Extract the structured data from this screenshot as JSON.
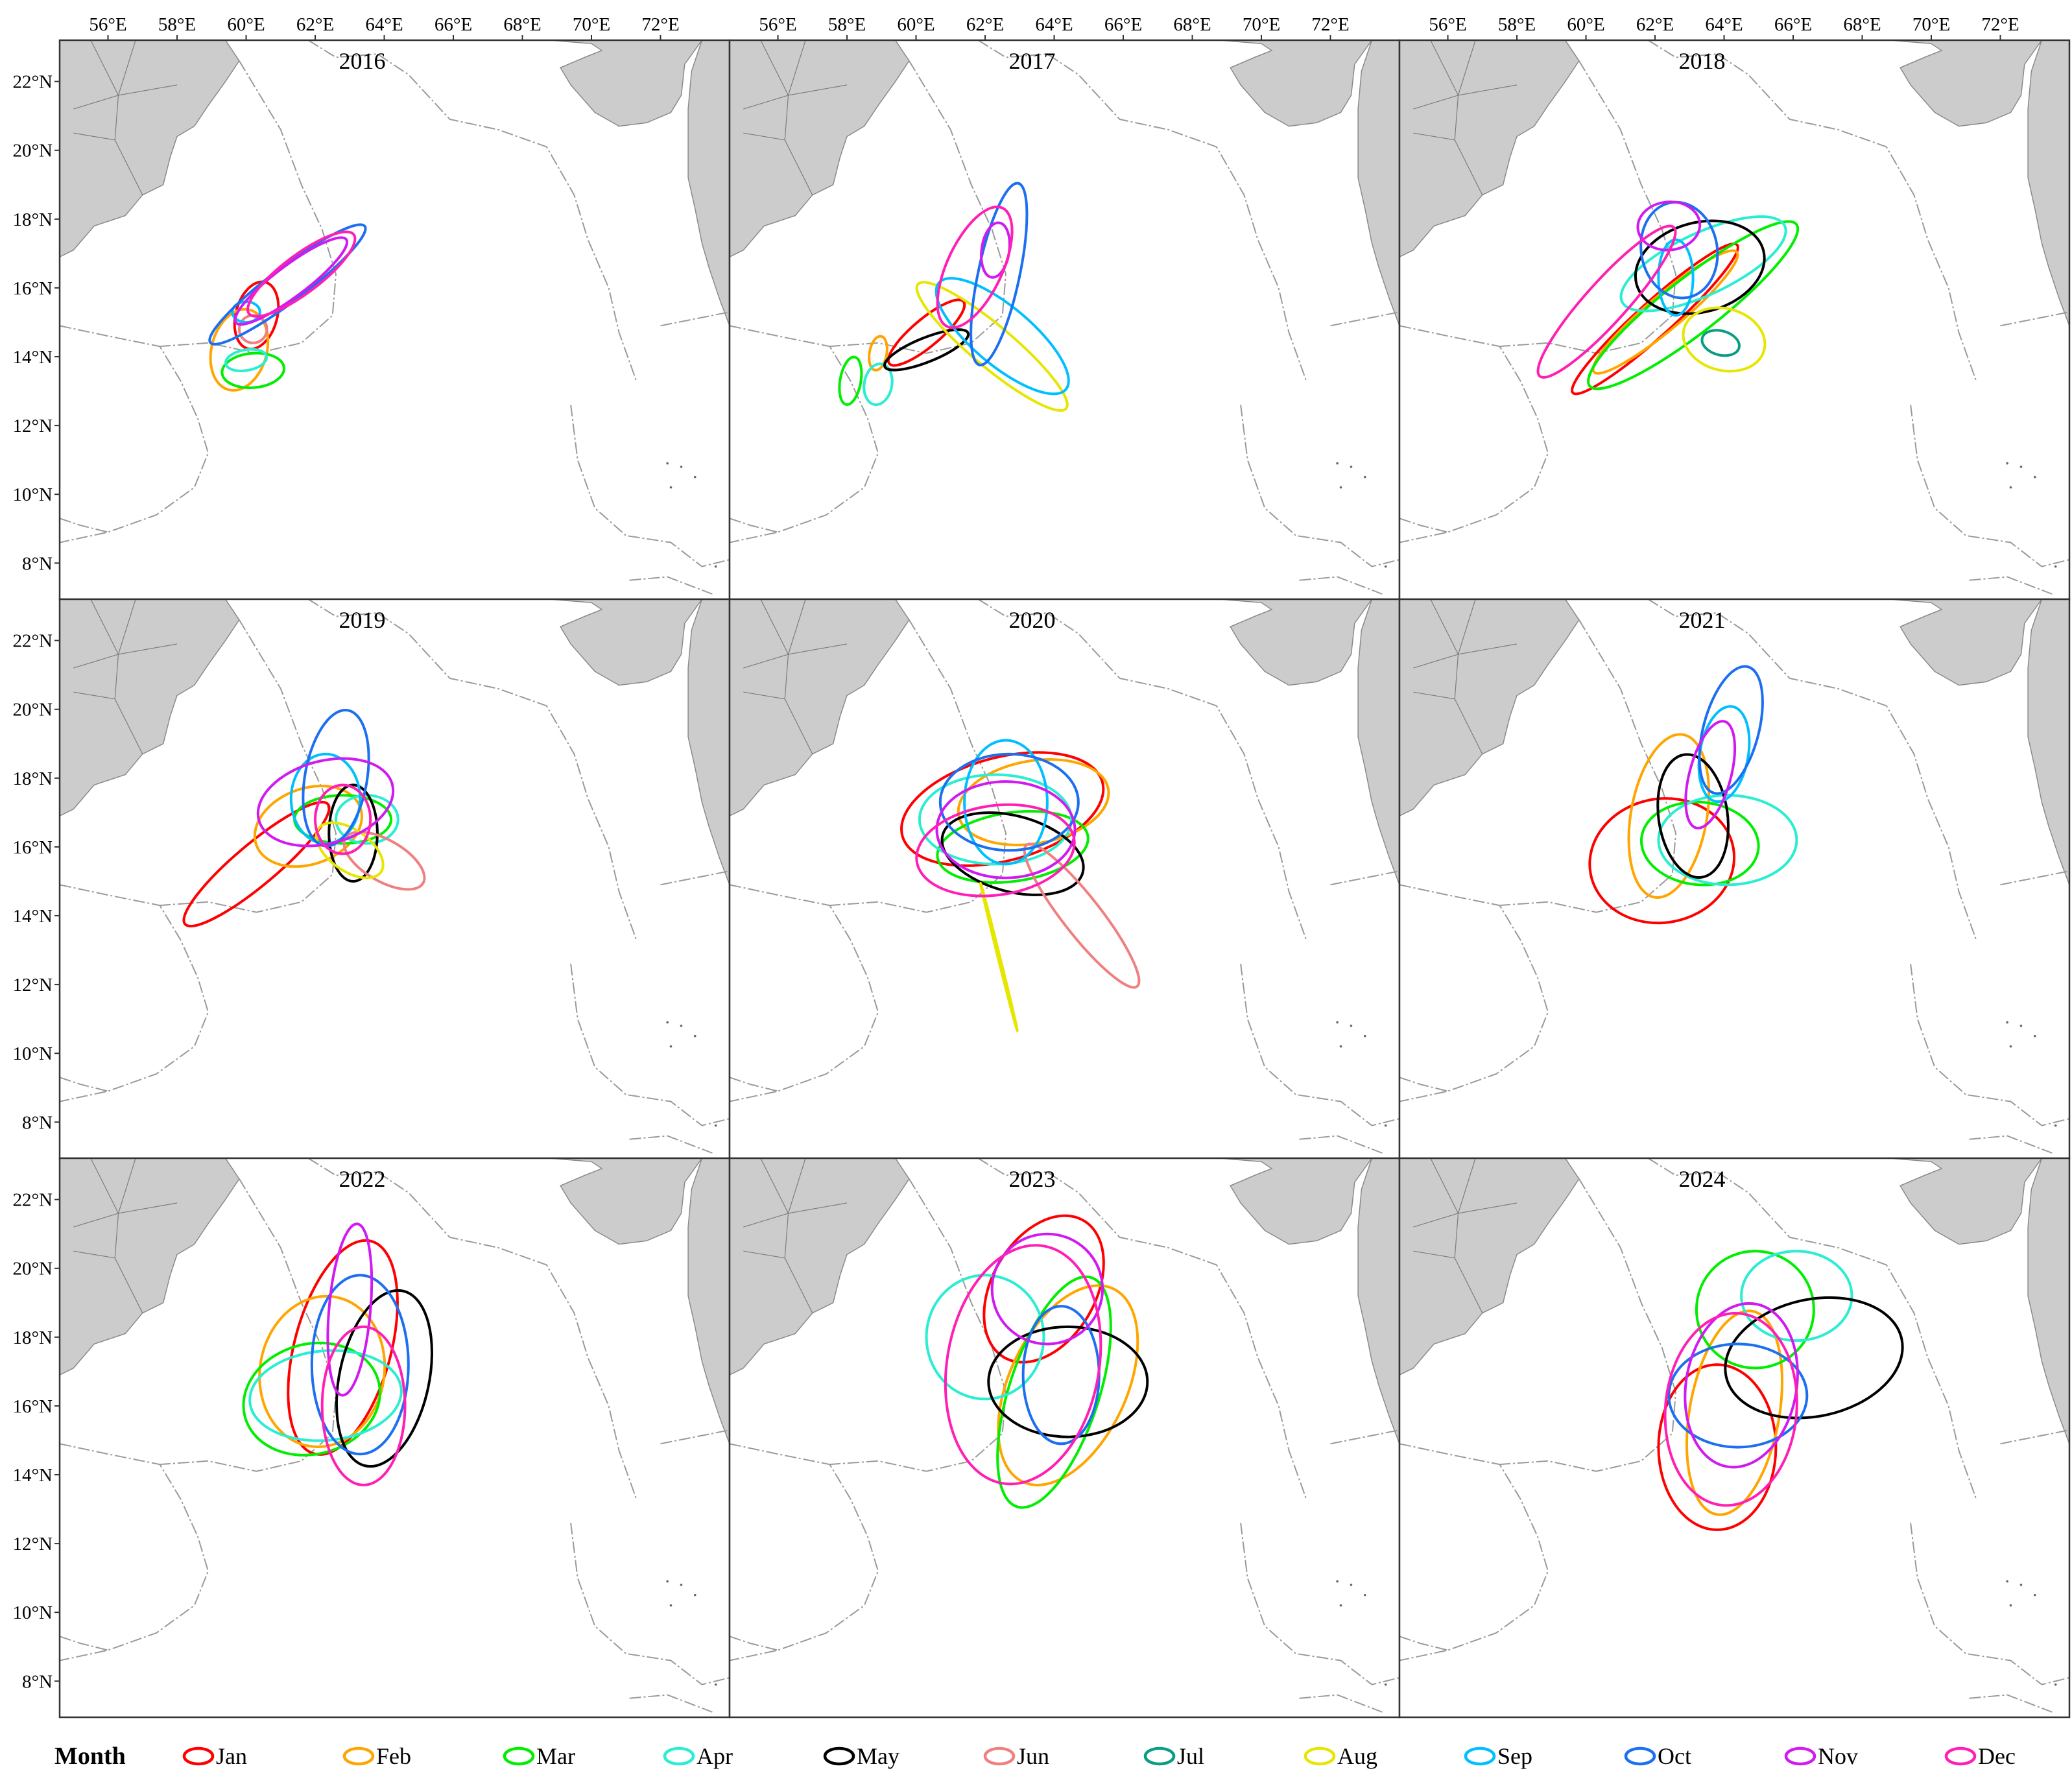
{
  "lon_ticks": [
    "56°E",
    "58°E",
    "60°E",
    "62°E",
    "64°E",
    "66°E",
    "68°E",
    "70°E",
    "72°E"
  ],
  "lat_ticks": [
    "22°N",
    "20°N",
    "18°N",
    "16°N",
    "14°N",
    "12°N",
    "10°N",
    "8°N"
  ],
  "legend": {
    "title": "Month",
    "months": [
      {
        "key": "Jan",
        "label": "Jan",
        "color": "#ff0000"
      },
      {
        "key": "Feb",
        "label": "Feb",
        "color": "#ffa500"
      },
      {
        "key": "Mar",
        "label": "Mar",
        "color": "#00ee00"
      },
      {
        "key": "Apr",
        "label": "Apr",
        "color": "#2aedd2"
      },
      {
        "key": "May",
        "label": "May",
        "color": "#000000"
      },
      {
        "key": "Jun",
        "label": "Jun",
        "color": "#f08080"
      },
      {
        "key": "Jul",
        "label": "Jul",
        "color": "#0a9d82"
      },
      {
        "key": "Aug",
        "label": "Aug",
        "color": "#e6e600"
      },
      {
        "key": "Sep",
        "label": "Sep",
        "color": "#00bfff"
      },
      {
        "key": "Oct",
        "label": "Oct",
        "color": "#1c6ff0"
      },
      {
        "key": "Nov",
        "label": "Nov",
        "color": "#d01af0"
      },
      {
        "key": "Dec",
        "label": "Dec",
        "color": "#ff1fb4"
      }
    ]
  },
  "colors": {
    "land": "#cccccc",
    "land_border": "#8a8a8a",
    "boundary": "#9a9a9a",
    "frame": "#333333"
  },
  "panels": [
    {
      "year": "2016",
      "ellipses": [
        {
          "m": "Jan",
          "lon": 60.3,
          "lat": 15.2,
          "rx": 0.6,
          "ry": 1.0,
          "rot": 15
        },
        {
          "m": "Feb",
          "lon": 59.8,
          "lat": 14.2,
          "rx": 0.8,
          "ry": 1.2,
          "rot": 15
        },
        {
          "m": "Mar",
          "lon": 60.2,
          "lat": 13.6,
          "rx": 0.9,
          "ry": 0.5,
          "rot": -5
        },
        {
          "m": "Apr",
          "lon": 60.0,
          "lat": 13.9,
          "rx": 0.6,
          "ry": 0.3,
          "rot": -10
        },
        {
          "m": "Jun",
          "lon": 60.2,
          "lat": 14.8,
          "rx": 0.4,
          "ry": 0.4,
          "rot": 0
        },
        {
          "m": "Sep",
          "lon": 60.0,
          "lat": 15.3,
          "rx": 0.4,
          "ry": 0.3,
          "rot": 0
        },
        {
          "m": "Oct",
          "lon": 61.2,
          "lat": 16.1,
          "rx": 2.8,
          "ry": 0.5,
          "rot": -37
        },
        {
          "m": "Nov",
          "lon": 61.3,
          "lat": 16.2,
          "rx": 2.0,
          "ry": 0.45,
          "rot": -37
        },
        {
          "m": "Dec",
          "lon": 61.6,
          "lat": 16.4,
          "rx": 1.9,
          "ry": 0.55,
          "rot": -37
        }
      ]
    },
    {
      "year": "2017",
      "ellipses": [
        {
          "m": "Jan",
          "lon": 60.3,
          "lat": 14.7,
          "rx": 1.4,
          "ry": 0.4,
          "rot": -40
        },
        {
          "m": "Feb",
          "lon": 58.9,
          "lat": 14.1,
          "rx": 0.25,
          "ry": 0.5,
          "rot": 10
        },
        {
          "m": "Mar",
          "lon": 58.1,
          "lat": 13.3,
          "rx": 0.3,
          "ry": 0.7,
          "rot": 10
        },
        {
          "m": "Apr",
          "lon": 58.9,
          "lat": 13.2,
          "rx": 0.4,
          "ry": 0.6,
          "rot": 10
        },
        {
          "m": "May",
          "lon": 60.3,
          "lat": 14.2,
          "rx": 1.3,
          "ry": 0.35,
          "rot": -22
        },
        {
          "m": "Aug",
          "lon": 62.2,
          "lat": 14.3,
          "rx": 2.8,
          "ry": 0.6,
          "rot": 40
        },
        {
          "m": "Sep",
          "lon": 62.5,
          "lat": 14.6,
          "rx": 2.4,
          "ry": 0.85,
          "rot": 40
        },
        {
          "m": "Oct",
          "lon": 62.4,
          "lat": 16.4,
          "rx": 0.6,
          "ry": 2.7,
          "rot": 12
        },
        {
          "m": "Nov",
          "lon": 62.3,
          "lat": 17.1,
          "rx": 0.4,
          "ry": 0.8,
          "rot": 8
        },
        {
          "m": "Dec",
          "lon": 61.7,
          "lat": 16.6,
          "rx": 0.8,
          "ry": 1.9,
          "rot": 25
        }
      ]
    },
    {
      "year": "2018",
      "ellipses": [
        {
          "m": "Jan",
          "lon": 62.0,
          "lat": 15.1,
          "rx": 3.2,
          "ry": 0.5,
          "rot": -42
        },
        {
          "m": "Feb",
          "lon": 62.3,
          "lat": 15.3,
          "rx": 2.7,
          "ry": 0.5,
          "rot": -40
        },
        {
          "m": "Mar",
          "lon": 63.1,
          "lat": 15.5,
          "rx": 3.8,
          "ry": 0.8,
          "rot": -38
        },
        {
          "m": "Apr",
          "lon": 63.4,
          "lat": 16.7,
          "rx": 2.6,
          "ry": 0.9,
          "rot": -25
        },
        {
          "m": "May",
          "lon": 63.3,
          "lat": 16.6,
          "rx": 1.9,
          "ry": 1.3,
          "rot": -15
        },
        {
          "m": "Jul",
          "lon": 63.9,
          "lat": 14.4,
          "rx": 0.55,
          "ry": 0.35,
          "rot": 15
        },
        {
          "m": "Aug",
          "lon": 64.0,
          "lat": 14.5,
          "rx": 1.2,
          "ry": 0.9,
          "rot": 15
        },
        {
          "m": "Sep",
          "lon": 62.6,
          "lat": 16.3,
          "rx": 0.5,
          "ry": 1.1,
          "rot": 0
        },
        {
          "m": "Oct",
          "lon": 62.7,
          "lat": 17.1,
          "rx": 1.1,
          "ry": 1.4,
          "rot": -10
        },
        {
          "m": "Nov",
          "lon": 62.4,
          "lat": 17.8,
          "rx": 0.9,
          "ry": 0.7,
          "rot": -5
        },
        {
          "m": "Dec",
          "lon": 60.6,
          "lat": 15.6,
          "rx": 2.9,
          "ry": 0.6,
          "rot": -48
        }
      ]
    },
    {
      "year": "2019",
      "ellipses": [
        {
          "m": "Jan",
          "lon": 60.3,
          "lat": 15.5,
          "rx": 2.7,
          "ry": 0.6,
          "rot": -40
        },
        {
          "m": "Feb",
          "lon": 61.8,
          "lat": 16.6,
          "rx": 1.6,
          "ry": 1.1,
          "rot": -20
        },
        {
          "m": "Mar",
          "lon": 62.8,
          "lat": 16.8,
          "rx": 1.4,
          "ry": 0.7,
          "rot": 0
        },
        {
          "m": "Apr",
          "lon": 63.5,
          "lat": 16.8,
          "rx": 0.9,
          "ry": 0.7,
          "rot": 0
        },
        {
          "m": "May",
          "lon": 63.1,
          "lat": 16.4,
          "rx": 0.7,
          "ry": 1.4,
          "rot": 0
        },
        {
          "m": "Jun",
          "lon": 64.0,
          "lat": 15.6,
          "rx": 1.3,
          "ry": 0.6,
          "rot": 30
        },
        {
          "m": "Aug",
          "lon": 63.0,
          "lat": 15.9,
          "rx": 1.1,
          "ry": 0.6,
          "rot": 35
        },
        {
          "m": "Sep",
          "lon": 62.3,
          "lat": 17.4,
          "rx": 1.0,
          "ry": 1.3,
          "rot": 0
        },
        {
          "m": "Oct",
          "lon": 62.6,
          "lat": 18.0,
          "rx": 0.9,
          "ry": 2.0,
          "rot": 10
        },
        {
          "m": "Nov",
          "lon": 62.3,
          "lat": 17.3,
          "rx": 2.0,
          "ry": 1.2,
          "rot": -15
        },
        {
          "m": "Dec",
          "lon": 62.8,
          "lat": 16.8,
          "rx": 0.8,
          "ry": 1.0,
          "rot": 0
        }
      ]
    },
    {
      "year": "2020",
      "ellipses": [
        {
          "m": "Jan",
          "lon": 62.5,
          "lat": 17.1,
          "rx": 3.0,
          "ry": 1.5,
          "rot": -15
        },
        {
          "m": "Feb",
          "lon": 63.4,
          "lat": 17.3,
          "rx": 2.2,
          "ry": 1.2,
          "rot": -10
        },
        {
          "m": "Mar",
          "lon": 62.8,
          "lat": 16.0,
          "rx": 2.2,
          "ry": 1.0,
          "rot": -8
        },
        {
          "m": "Apr",
          "lon": 62.3,
          "lat": 16.8,
          "rx": 2.2,
          "ry": 1.3,
          "rot": 0
        },
        {
          "m": "May",
          "lon": 62.8,
          "lat": 15.8,
          "rx": 2.1,
          "ry": 1.1,
          "rot": 15
        },
        {
          "m": "Jun",
          "lon": 64.8,
          "lat": 14.0,
          "rx": 2.6,
          "ry": 0.55,
          "rot": 52
        },
        {
          "m": "Aug",
          "lon": 62.4,
          "lat": 12.8,
          "rx": 2.2,
          "ry": 0.03,
          "rot": 76
        },
        {
          "m": "Sep",
          "lon": 62.6,
          "lat": 17.3,
          "rx": 1.2,
          "ry": 1.8,
          "rot": 0
        },
        {
          "m": "Oct",
          "lon": 62.7,
          "lat": 17.3,
          "rx": 2.0,
          "ry": 1.4,
          "rot": 0
        },
        {
          "m": "Nov",
          "lon": 62.6,
          "lat": 16.5,
          "rx": 2.0,
          "ry": 1.4,
          "rot": 0
        },
        {
          "m": "Dec",
          "lon": 62.3,
          "lat": 15.9,
          "rx": 2.3,
          "ry": 1.3,
          "rot": -8
        }
      ]
    },
    {
      "year": "2021",
      "ellipses": [
        {
          "m": "Jan",
          "lon": 62.2,
          "lat": 15.6,
          "rx": 2.1,
          "ry": 1.8,
          "rot": -10
        },
        {
          "m": "Feb",
          "lon": 62.4,
          "lat": 16.9,
          "rx": 1.1,
          "ry": 2.4,
          "rot": 10
        },
        {
          "m": "Mar",
          "lon": 63.3,
          "lat": 16.1,
          "rx": 1.7,
          "ry": 1.2,
          "rot": 5
        },
        {
          "m": "Apr",
          "lon": 64.1,
          "lat": 16.2,
          "rx": 2.0,
          "ry": 1.3,
          "rot": 0
        },
        {
          "m": "May",
          "lon": 63.1,
          "lat": 16.9,
          "rx": 1.0,
          "ry": 1.8,
          "rot": -8
        },
        {
          "m": "Sep",
          "lon": 64.0,
          "lat": 18.7,
          "rx": 0.7,
          "ry": 1.4,
          "rot": 10
        },
        {
          "m": "Oct",
          "lon": 64.2,
          "lat": 19.4,
          "rx": 0.8,
          "ry": 1.9,
          "rot": 15
        },
        {
          "m": "Nov",
          "lon": 63.6,
          "lat": 18.1,
          "rx": 0.6,
          "ry": 1.6,
          "rot": 15
        }
      ]
    },
    {
      "year": "2022",
      "ellipses": [
        {
          "m": "Jan",
          "lon": 62.8,
          "lat": 17.7,
          "rx": 1.4,
          "ry": 3.2,
          "rot": 15
        },
        {
          "m": "Feb",
          "lon": 62.2,
          "lat": 17.0,
          "rx": 1.8,
          "ry": 2.2,
          "rot": 10
        },
        {
          "m": "Mar",
          "lon": 61.9,
          "lat": 16.2,
          "rx": 2.0,
          "ry": 1.6,
          "rot": -15
        },
        {
          "m": "Apr",
          "lon": 62.3,
          "lat": 16.3,
          "rx": 2.2,
          "ry": 1.3,
          "rot": -5
        },
        {
          "m": "May",
          "lon": 64.0,
          "lat": 16.8,
          "rx": 1.3,
          "ry": 2.6,
          "rot": 12
        },
        {
          "m": "Oct",
          "lon": 63.3,
          "lat": 17.2,
          "rx": 1.4,
          "ry": 2.6,
          "rot": 0
        },
        {
          "m": "Nov",
          "lon": 63.0,
          "lat": 18.8,
          "rx": 0.6,
          "ry": 2.5,
          "rot": 5
        },
        {
          "m": "Dec",
          "lon": 63.4,
          "lat": 16.0,
          "rx": 1.2,
          "ry": 2.3,
          "rot": 0
        }
      ]
    },
    {
      "year": "2023",
      "ellipses": [
        {
          "m": "Jan",
          "lon": 63.7,
          "lat": 19.4,
          "rx": 1.5,
          "ry": 2.3,
          "rot": 30
        },
        {
          "m": "Feb",
          "lon": 64.4,
          "lat": 16.6,
          "rx": 1.7,
          "ry": 3.1,
          "rot": 25
        },
        {
          "m": "Mar",
          "lon": 64.0,
          "lat": 16.4,
          "rx": 1.3,
          "ry": 3.5,
          "rot": 18
        },
        {
          "m": "Apr",
          "lon": 62.0,
          "lat": 18.0,
          "rx": 1.7,
          "ry": 1.8,
          "rot": 0
        },
        {
          "m": "May",
          "lon": 64.4,
          "lat": 16.7,
          "rx": 2.3,
          "ry": 1.6,
          "rot": 0
        },
        {
          "m": "Oct",
          "lon": 64.2,
          "lat": 16.9,
          "rx": 1.1,
          "ry": 2.0,
          "rot": 0
        },
        {
          "m": "Nov",
          "lon": 63.8,
          "lat": 19.4,
          "rx": 1.6,
          "ry": 1.6,
          "rot": 0
        },
        {
          "m": "Dec",
          "lon": 63.1,
          "lat": 17.2,
          "rx": 2.2,
          "ry": 3.5,
          "rot": 10
        }
      ]
    },
    {
      "year": "2024",
      "ellipses": [
        {
          "m": "Jan",
          "lon": 63.8,
          "lat": 14.8,
          "rx": 1.7,
          "ry": 2.4,
          "rot": 0
        },
        {
          "m": "Feb",
          "lon": 64.3,
          "lat": 15.8,
          "rx": 1.3,
          "ry": 3.0,
          "rot": 10
        },
        {
          "m": "Mar",
          "lon": 64.9,
          "lat": 18.8,
          "rx": 1.7,
          "ry": 1.7,
          "rot": 0
        },
        {
          "m": "Apr",
          "lon": 66.1,
          "lat": 19.2,
          "rx": 1.6,
          "ry": 1.3,
          "rot": 0
        },
        {
          "m": "May",
          "lon": 66.6,
          "lat": 17.4,
          "rx": 2.6,
          "ry": 1.7,
          "rot": -12
        },
        {
          "m": "Oct",
          "lon": 64.4,
          "lat": 16.3,
          "rx": 2.0,
          "ry": 1.5,
          "rot": 0
        },
        {
          "m": "Nov",
          "lon": 64.5,
          "lat": 16.6,
          "rx": 1.6,
          "ry": 2.4,
          "rot": 10
        },
        {
          "m": "Dec",
          "lon": 64.2,
          "lat": 15.9,
          "rx": 1.9,
          "ry": 2.8,
          "rot": 5
        }
      ]
    }
  ]
}
